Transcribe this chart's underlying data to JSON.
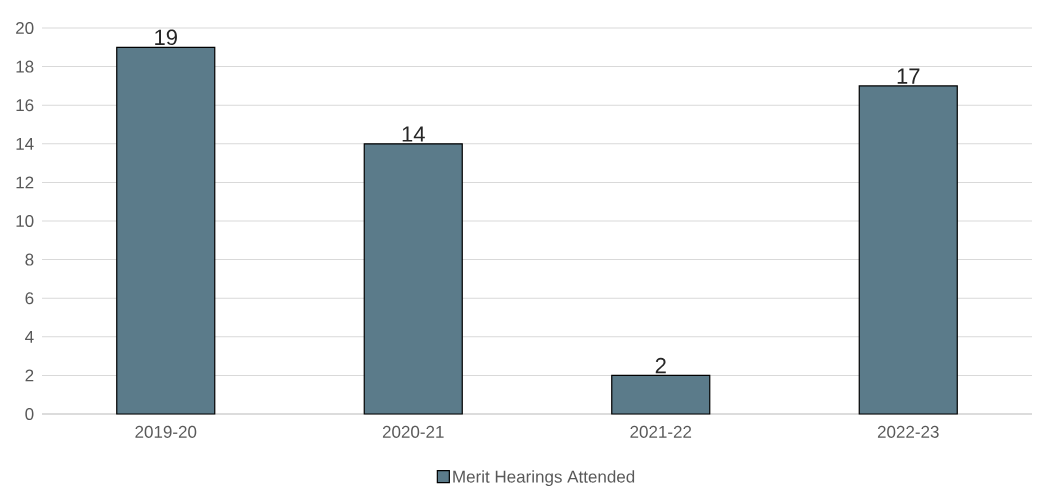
{
  "chart_data": {
    "type": "bar",
    "categories": [
      "2019-20",
      "2020-21",
      "2021-22",
      "2022-23"
    ],
    "series": [
      {
        "name": "Merit Hearings Attended",
        "color": "#5b7b8a",
        "values": [
          19,
          14,
          2,
          17
        ]
      }
    ],
    "ylim": [
      0,
      20
    ],
    "yticks": [
      0,
      2,
      4,
      6,
      8,
      10,
      12,
      14,
      16,
      18,
      20
    ],
    "grid": "y",
    "legend": "bottom",
    "data_labels": true
  }
}
